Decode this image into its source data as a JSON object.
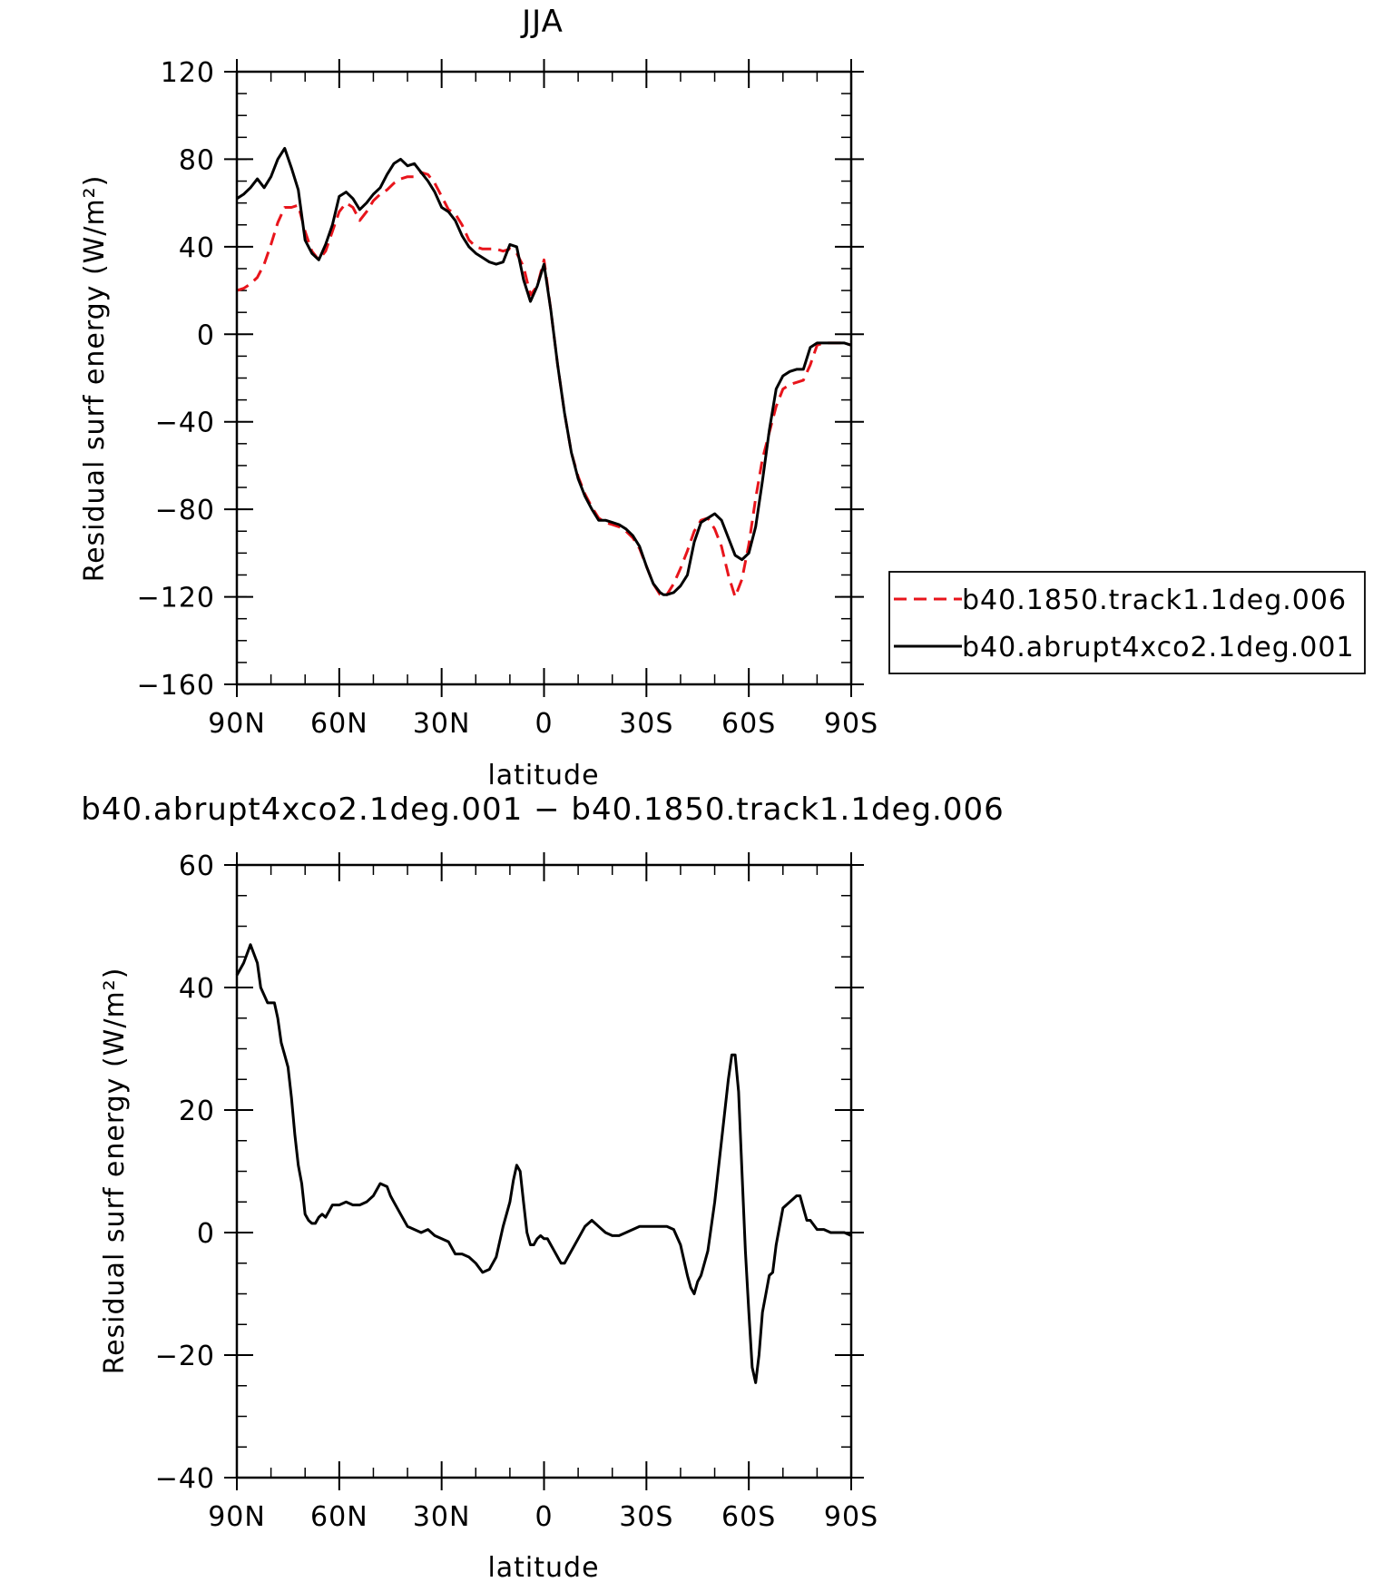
{
  "chart_data": [
    {
      "type": "line",
      "title": "JJA",
      "xlabel": "latitude",
      "ylabel": "Residual surf energy (W/m²)",
      "xlim": [
        90,
        -90
      ],
      "ylim": [
        -160,
        120
      ],
      "x_ticks": [
        {
          "value": 90,
          "label": "90N"
        },
        {
          "value": 60,
          "label": "60N"
        },
        {
          "value": 30,
          "label": "30N"
        },
        {
          "value": 0,
          "label": "0"
        },
        {
          "value": -30,
          "label": "30S"
        },
        {
          "value": -60,
          "label": "60S"
        },
        {
          "value": -90,
          "label": "90S"
        }
      ],
      "y_ticks": [
        120,
        80,
        40,
        0,
        -40,
        -80,
        -120,
        -160
      ],
      "legend_position": "right",
      "series": [
        {
          "name": "b40.1850.track1.1deg.006",
          "color": "#e8141b",
          "dash": "dashed",
          "x": [
            90,
            88,
            86,
            84,
            82,
            80,
            78,
            76,
            74,
            72,
            70,
            68,
            66,
            64,
            62,
            60,
            58,
            56,
            54,
            52,
            50,
            48,
            46,
            44,
            42,
            40,
            38,
            36,
            34,
            32,
            30,
            28,
            26,
            24,
            22,
            20,
            18,
            16,
            14,
            12,
            10,
            8,
            6,
            4,
            2,
            0,
            -2,
            -4,
            -6,
            -8,
            -10,
            -12,
            -14,
            -16,
            -18,
            -20,
            -22,
            -24,
            -26,
            -28,
            -30,
            -32,
            -34,
            -35,
            -36,
            -38,
            -40,
            -42,
            -44,
            -46,
            -48,
            -50,
            -52,
            -54,
            -56,
            -58,
            -60,
            -62,
            -64,
            -66,
            -68,
            -70,
            -72,
            -74,
            -76,
            -78,
            -80,
            -82,
            -84,
            -86,
            -88,
            -90
          ],
          "values": [
            20,
            21,
            23,
            26,
            32,
            41,
            51,
            58,
            58,
            59,
            47,
            38,
            34,
            38,
            47,
            56,
            60,
            58,
            52,
            56,
            61,
            64,
            66,
            69,
            71,
            72,
            72,
            74,
            73,
            69,
            63,
            57,
            55,
            50,
            43,
            40,
            39,
            39,
            39,
            38,
            39,
            37,
            31,
            18,
            22,
            34,
            11,
            -14,
            -36,
            -54,
            -65,
            -73,
            -79,
            -84,
            -86,
            -87,
            -88,
            -90,
            -93,
            -98,
            -106,
            -114,
            -119,
            -120,
            -119,
            -114,
            -107,
            -99,
            -90,
            -85,
            -84,
            -89,
            -97,
            -110,
            -120,
            -112,
            -96,
            -75,
            -57,
            -45,
            -33,
            -25,
            -23,
            -22,
            -21,
            -14,
            -5,
            -4,
            -4,
            -4,
            -4,
            -5
          ]
        },
        {
          "name": "b40.abrupt4xco2.1deg.001",
          "color": "#000000",
          "dash": "solid",
          "x": [
            90,
            88,
            86,
            84,
            82,
            80,
            78,
            76,
            74,
            72,
            70,
            68,
            66,
            64,
            62,
            60,
            58,
            56,
            54,
            52,
            50,
            48,
            46,
            44,
            42,
            40,
            38,
            36,
            34,
            32,
            30,
            28,
            26,
            24,
            22,
            20,
            18,
            16,
            14,
            12,
            10,
            8,
            6,
            4,
            2,
            0,
            -2,
            -4,
            -6,
            -8,
            -10,
            -12,
            -14,
            -16,
            -18,
            -20,
            -22,
            -24,
            -26,
            -28,
            -30,
            -32,
            -34,
            -35,
            -36,
            -38,
            -40,
            -42,
            -44,
            -46,
            -48,
            -50,
            -52,
            -54,
            -56,
            -58,
            -60,
            -62,
            -64,
            -66,
            -68,
            -70,
            -72,
            -74,
            -76,
            -78,
            -80,
            -82,
            -84,
            -86,
            -88,
            -90
          ],
          "values": [
            62,
            64,
            67,
            71,
            67,
            72,
            80,
            85,
            76,
            66,
            43,
            37,
            34,
            41,
            50,
            63,
            65,
            62,
            57,
            60,
            64,
            67,
            73,
            78,
            80,
            77,
            78,
            74,
            70,
            65,
            58,
            56,
            52,
            45,
            40,
            37,
            35,
            33,
            32,
            33,
            41,
            40,
            25,
            15,
            22,
            32,
            11,
            -14,
            -36,
            -54,
            -66,
            -74,
            -80,
            -85,
            -85,
            -86,
            -87,
            -89,
            -92,
            -97,
            -106,
            -114,
            -118,
            -119,
            -119,
            -118,
            -115,
            -110,
            -95,
            -86,
            -84,
            -82,
            -85,
            -93,
            -101,
            -103,
            -100,
            -88,
            -67,
            -44,
            -25,
            -19,
            -17,
            -16,
            -16,
            -6,
            -4,
            -4,
            -4,
            -4,
            -4,
            -5
          ]
        }
      ]
    },
    {
      "type": "line",
      "title": "b40.abrupt4xco2.1deg.001 − b40.1850.track1.1deg.006",
      "xlabel": "latitude",
      "ylabel": "Residual surf energy (W/m²)",
      "xlim": [
        90,
        -90
      ],
      "ylim": [
        -40,
        60
      ],
      "x_ticks": [
        {
          "value": 90,
          "label": "90N"
        },
        {
          "value": 60,
          "label": "60N"
        },
        {
          "value": 30,
          "label": "30N"
        },
        {
          "value": 0,
          "label": "0"
        },
        {
          "value": -30,
          "label": "30S"
        },
        {
          "value": -60,
          "label": "60S"
        },
        {
          "value": -90,
          "label": "90S"
        }
      ],
      "y_ticks": [
        60,
        40,
        20,
        0,
        -20,
        -40
      ],
      "series": [
        {
          "color": "#000000",
          "dash": "solid",
          "x": [
            90,
            88,
            86,
            84,
            83,
            81,
            79,
            78,
            77,
            76,
            75,
            74,
            73,
            72,
            71,
            70,
            69,
            68,
            67,
            66,
            65,
            64,
            63,
            62,
            61,
            60,
            58,
            56,
            54,
            52,
            50,
            48,
            46,
            45,
            44,
            42,
            40,
            38,
            36,
            34,
            32,
            30,
            28,
            26,
            24,
            22,
            20,
            18,
            16,
            14,
            12,
            10,
            9,
            8,
            7,
            6,
            5,
            4,
            3,
            2,
            1,
            0,
            -1,
            -2,
            -3,
            -4,
            -5,
            -6,
            -7,
            -8,
            -10,
            -12,
            -14,
            -16,
            -18,
            -20,
            -22,
            -24,
            -26,
            -28,
            -30,
            -32,
            -34,
            -36,
            -38,
            -40,
            -42,
            -43,
            -44,
            -45,
            -46,
            -48,
            -50,
            -52,
            -54,
            -55,
            -56,
            -57,
            -58,
            -59,
            -60,
            -61,
            -62,
            -63,
            -64,
            -65,
            -66,
            -67,
            -68,
            -69,
            -70,
            -71,
            -72,
            -73,
            -74,
            -75,
            -76,
            -77,
            -78,
            -80,
            -82,
            -84,
            -86,
            -88,
            -90
          ],
          "values": [
            42,
            44,
            47,
            44,
            40,
            37.5,
            37.5,
            35,
            31,
            29,
            27,
            22,
            16,
            11,
            8,
            3,
            2,
            1.5,
            1.5,
            2.5,
            3,
            2.5,
            3.5,
            4.5,
            4.5,
            4.5,
            5,
            4.5,
            4.5,
            5,
            6,
            8,
            7.5,
            6,
            5,
            3,
            1,
            0.5,
            0,
            0.5,
            -0.5,
            -1,
            -1.5,
            -3.5,
            -3.5,
            -4,
            -5,
            -6.5,
            -6,
            -4,
            1,
            5,
            8.5,
            11,
            10,
            5,
            0,
            -2,
            -2,
            -1,
            -0.5,
            -1,
            -1,
            -2,
            -3,
            -4,
            -5,
            -5,
            -4,
            -3,
            -1,
            1,
            2,
            1,
            0,
            -0.5,
            -0.5,
            0,
            0.5,
            1,
            1,
            1,
            1,
            1,
            0.5,
            -2,
            -7,
            -9,
            -10,
            -8,
            -7,
            -3,
            5,
            15,
            25,
            29,
            29,
            23,
            10,
            -3,
            -13,
            -22,
            -24.5,
            -20,
            -13,
            -10,
            -7,
            -6.5,
            -2,
            1,
            4,
            4.5,
            5,
            5.5,
            6,
            6,
            4,
            2,
            2,
            0.5,
            0.5,
            0,
            0,
            0,
            -0.5
          ]
        }
      ]
    }
  ]
}
